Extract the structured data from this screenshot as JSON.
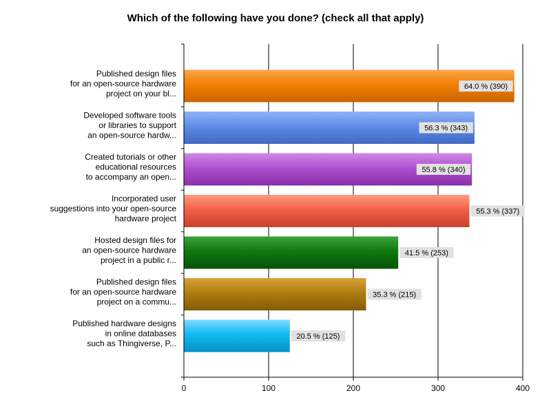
{
  "chart_data": {
    "type": "bar",
    "orientation": "horizontal",
    "title": "Which of the following have you done? (check all that apply)",
    "xlabel": "",
    "ylabel": "",
    "xlim": [
      0,
      400
    ],
    "xticks": [
      0,
      100,
      200,
      300,
      400
    ],
    "grid": true,
    "categories": [
      [
        "Published design files",
        "for an open-source hardware",
        "project on your bl..."
      ],
      [
        "Developed software tools",
        "or libraries to support",
        "an open-source hardw..."
      ],
      [
        "Created tutorials or other",
        "educational resources",
        "to accompany an open..."
      ],
      [
        "Incorporated user",
        "suggestions into your open-source",
        "hardware project"
      ],
      [
        "Hosted design files for",
        "an open-source hardware",
        "project in a public r..."
      ],
      [
        "Published design files",
        "for an open-source hardware",
        "project on a commu..."
      ],
      [
        "Published hardware designs",
        "in online databases",
        "such as Thingiverse, P..."
      ]
    ],
    "values": [
      390,
      343,
      340,
      337,
      253,
      215,
      125
    ],
    "percents": [
      "64.0 %",
      "56.3 %",
      "55.8 %",
      "55.3 %",
      "41.5 %",
      "35.3 %",
      "20.5 %"
    ],
    "data_labels": [
      "64.0 % (390)",
      "56.3 % (343)",
      "55.8 % (340)",
      "55.3 % (337)",
      "41.5 % (253)",
      "35.3 % (215)",
      "20.5 % (125)"
    ],
    "colors": [
      [
        "#ffa64d",
        "#f08000",
        "#c86400"
      ],
      [
        "#8fb3f5",
        "#5f8de8",
        "#3f68c2"
      ],
      [
        "#cf8ae6",
        "#b050d0",
        "#8a2eaa"
      ],
      [
        "#ff9b80",
        "#f36048",
        "#c8402e"
      ],
      [
        "#3aa43a",
        "#0f7a0f",
        "#075207"
      ],
      [
        "#d8a23a",
        "#b07d10",
        "#845c05"
      ],
      [
        "#7fdcff",
        "#10baf0",
        "#0590c8"
      ]
    ]
  }
}
